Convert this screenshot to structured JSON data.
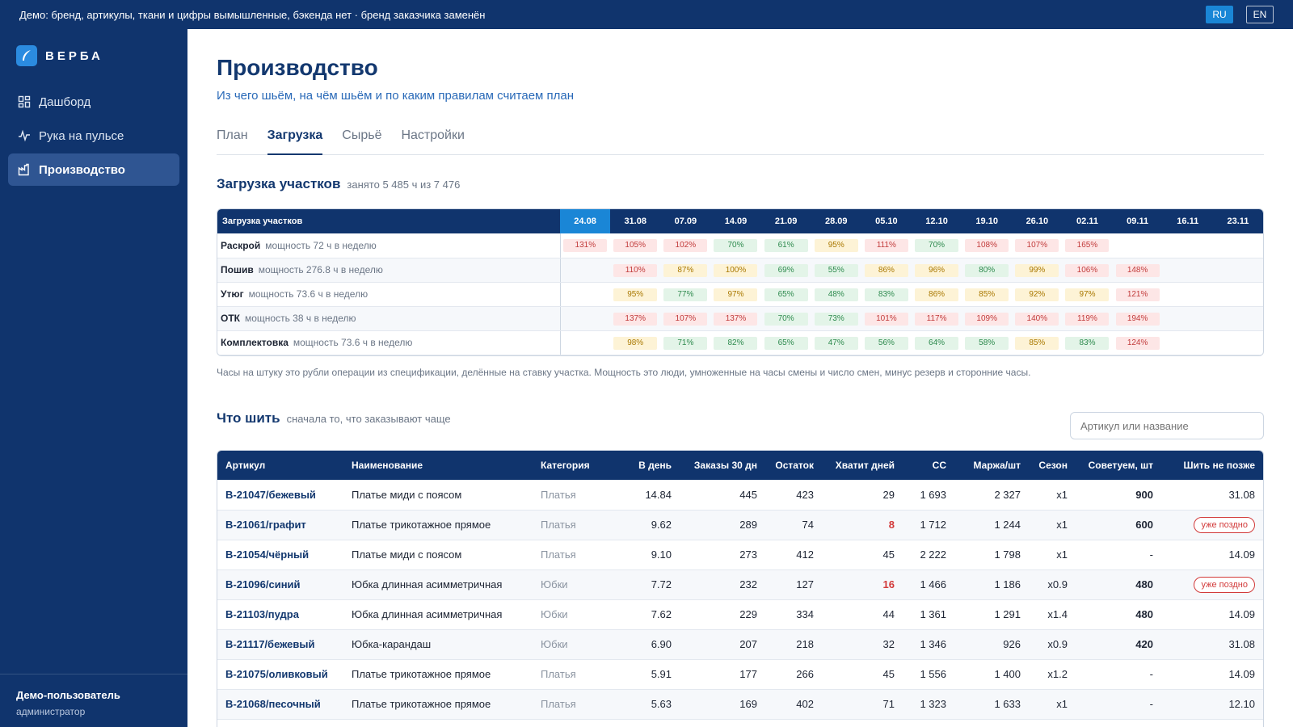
{
  "banner": {
    "text": "Демо: бренд, артикулы, ткани и цифры вымышленные, бэкенда нет · бренд заказчика заменён",
    "langs": [
      "RU",
      "EN"
    ]
  },
  "sidebar": {
    "logo": "ВЕРБА",
    "items": [
      {
        "label": "Дашборд",
        "icon": "dashboard-icon"
      },
      {
        "label": "Рука на пульсе",
        "icon": "pulse-icon"
      },
      {
        "label": "Производство",
        "icon": "factory-icon"
      }
    ],
    "user": {
      "name": "Демо-пользователь",
      "role": "администратор"
    }
  },
  "page": {
    "title": "Производство",
    "subtitle": "Из чего шьём, на чём шьём и по каким правилам считаем план",
    "tabs": [
      "План",
      "Загрузка",
      "Сырьё",
      "Настройки"
    ],
    "active_tab": "Загрузка"
  },
  "load": {
    "title": "Загрузка участков",
    "note": "занято 5 485 ч из 7 476",
    "header": "Загрузка участков",
    "weeks": [
      "24.08",
      "31.08",
      "07.09",
      "14.09",
      "21.09",
      "28.09",
      "05.10",
      "12.10",
      "19.10",
      "26.10",
      "02.11",
      "09.11",
      "16.11",
      "23.11"
    ],
    "rows": [
      {
        "name": "Раскрой",
        "capacity": "мощность 72 ч в неделю",
        "values": [
          "131%",
          "105%",
          "102%",
          "70%",
          "61%",
          "95%",
          "111%",
          "70%",
          "108%",
          "107%",
          "165%",
          "",
          "",
          ""
        ]
      },
      {
        "name": "Пошив",
        "capacity": "мощность 276.8 ч в неделю",
        "values": [
          "",
          "110%",
          "87%",
          "100%",
          "69%",
          "55%",
          "86%",
          "96%",
          "80%",
          "99%",
          "106%",
          "148%",
          "",
          ""
        ]
      },
      {
        "name": "Утюг",
        "capacity": "мощность 73.6 ч в неделю",
        "values": [
          "",
          "95%",
          "77%",
          "97%",
          "65%",
          "48%",
          "83%",
          "86%",
          "85%",
          "92%",
          "97%",
          "121%",
          "",
          ""
        ]
      },
      {
        "name": "ОТК",
        "capacity": "мощность 38 ч в неделю",
        "values": [
          "",
          "137%",
          "107%",
          "137%",
          "70%",
          "73%",
          "101%",
          "117%",
          "109%",
          "140%",
          "119%",
          "194%",
          "",
          ""
        ]
      },
      {
        "name": "Комплектовка",
        "capacity": "мощность 73.6 ч в неделю",
        "values": [
          "",
          "98%",
          "71%",
          "82%",
          "65%",
          "47%",
          "56%",
          "64%",
          "58%",
          "85%",
          "83%",
          "124%",
          "",
          ""
        ]
      }
    ],
    "footnote": "Часы на штуку это рубли операции из спецификации, делённые на ставку участка. Мощность это люди, умноженные на часы смены и число смен, минус резерв и сторонние часы."
  },
  "what": {
    "title": "Что шить",
    "note": "сначала то, что заказывают чаще",
    "search_placeholder": "Артикул или название",
    "columns": [
      "Артикул",
      "Наименование",
      "Категория",
      "В день",
      "Заказы 30 дн",
      "Остаток",
      "Хватит дней",
      "СС",
      "Маржа/шт",
      "Сезон",
      "Советуем, шт",
      "Шить не позже"
    ],
    "rows": [
      {
        "sku": "В-21047/бежевый",
        "name": "Платье миди с поясом",
        "cat": "Платья",
        "day": "14.84",
        "orders": "445",
        "stock": "423",
        "days": "29",
        "days_warn": false,
        "cost": "1 693",
        "margin": "2 327",
        "season": "x1",
        "advise": "900",
        "deadline": "31.08",
        "late": false
      },
      {
        "sku": "В-21061/графит",
        "name": "Платье трикотажное прямое",
        "cat": "Платья",
        "day": "9.62",
        "orders": "289",
        "stock": "74",
        "days": "8",
        "days_warn": true,
        "cost": "1 712",
        "margin": "1 244",
        "season": "x1",
        "advise": "600",
        "deadline": "уже поздно",
        "late": true
      },
      {
        "sku": "В-21054/чёрный",
        "name": "Платье миди с поясом",
        "cat": "Платья",
        "day": "9.10",
        "orders": "273",
        "stock": "412",
        "days": "45",
        "days_warn": false,
        "cost": "2 222",
        "margin": "1 798",
        "season": "x1",
        "advise": "-",
        "deadline": "14.09",
        "late": false
      },
      {
        "sku": "В-21096/синий",
        "name": "Юбка длинная асимметричная",
        "cat": "Юбки",
        "day": "7.72",
        "orders": "232",
        "stock": "127",
        "days": "16",
        "days_warn": true,
        "cost": "1 466",
        "margin": "1 186",
        "season": "x0.9",
        "advise": "480",
        "deadline": "уже поздно",
        "late": true
      },
      {
        "sku": "В-21103/пудра",
        "name": "Юбка длинная асимметричная",
        "cat": "Юбки",
        "day": "7.62",
        "orders": "229",
        "stock": "334",
        "days": "44",
        "days_warn": false,
        "cost": "1 361",
        "margin": "1 291",
        "season": "x1.4",
        "advise": "480",
        "deadline": "14.09",
        "late": false
      },
      {
        "sku": "В-21117/бежевый",
        "name": "Юбка-карандаш",
        "cat": "Юбки",
        "day": "6.90",
        "orders": "207",
        "stock": "218",
        "days": "32",
        "days_warn": false,
        "cost": "1 346",
        "margin": "926",
        "season": "x0.9",
        "advise": "420",
        "deadline": "31.08",
        "late": false
      },
      {
        "sku": "В-21075/оливковый",
        "name": "Платье трикотажное прямое",
        "cat": "Платья",
        "day": "5.91",
        "orders": "177",
        "stock": "266",
        "days": "45",
        "days_warn": false,
        "cost": "1 556",
        "margin": "1 400",
        "season": "x1.2",
        "advise": "-",
        "deadline": "14.09",
        "late": false
      },
      {
        "sku": "В-21068/песочный",
        "name": "Платье трикотажное прямое",
        "cat": "Платья",
        "day": "5.63",
        "orders": "169",
        "stock": "402",
        "days": "71",
        "days_warn": false,
        "cost": "1 323",
        "margin": "1 633",
        "season": "x1",
        "advise": "-",
        "deadline": "12.10",
        "late": false
      }
    ]
  },
  "colors": {
    "navy": "#10346d",
    "accent": "#1a86d6",
    "red": "#d23a3a",
    "yellow": "#a97800",
    "green": "#2e8a4e"
  }
}
